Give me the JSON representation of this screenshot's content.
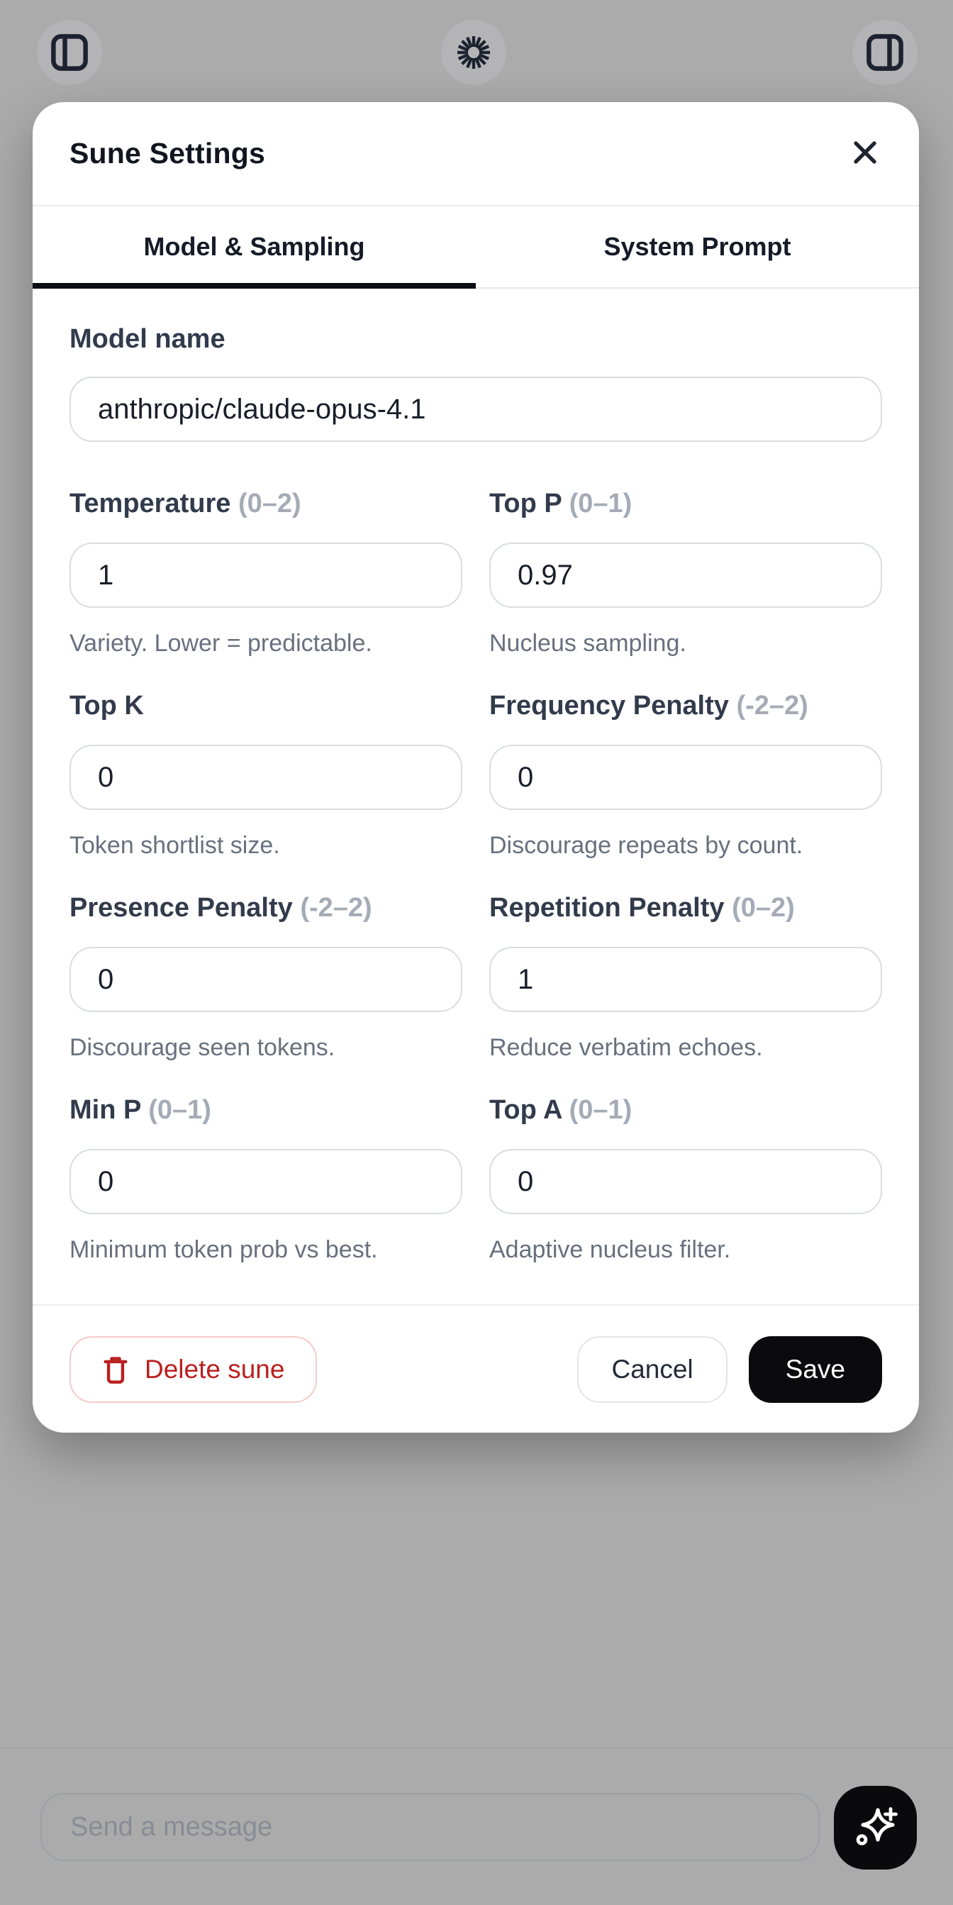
{
  "topbar": {
    "left_icon": "panel-left-icon",
    "center_icon": "starburst-spinner-icon",
    "right_icon": "panel-right-icon"
  },
  "modal": {
    "title": "Sune Settings",
    "close_icon": "close-icon",
    "tabs": [
      {
        "label": "Model & Sampling",
        "active": true
      },
      {
        "label": "System Prompt",
        "active": false
      }
    ],
    "model_field": {
      "label": "Model name",
      "value": "anthropic/claude-opus-4.1"
    },
    "fields": [
      {
        "label": "Temperature",
        "range": "(0–2)",
        "value": "1",
        "help": "Variety. Lower = predictable."
      },
      {
        "label": "Top P",
        "range": "(0–1)",
        "value": "0.97",
        "help": "Nucleus sampling."
      },
      {
        "label": "Top K",
        "range": "",
        "value": "0",
        "help": "Token shortlist size."
      },
      {
        "label": "Frequency Penalty",
        "range": "(-2–2)",
        "value": "0",
        "help": "Discourage repeats by count."
      },
      {
        "label": "Presence Penalty",
        "range": "(-2–2)",
        "value": "0",
        "help": "Discourage seen tokens."
      },
      {
        "label": "Repetition Penalty",
        "range": "(0–2)",
        "value": "1",
        "help": "Reduce verbatim echoes."
      },
      {
        "label": "Min P",
        "range": "(0–1)",
        "value": "0",
        "help": "Minimum token prob vs best."
      },
      {
        "label": "Top A",
        "range": "(0–1)",
        "value": "0",
        "help": "Adaptive nucleus filter."
      }
    ],
    "footer": {
      "delete_label": "Delete sune",
      "cancel_label": "Cancel",
      "save_label": "Save"
    }
  },
  "composer": {
    "placeholder": "Send a message",
    "send_icon": "sparkle-plus-icon"
  },
  "colors": {
    "overlay_grey": "#ababab",
    "modal_bg": "#ffffff",
    "tab_underline": "#0b0e15",
    "label_dark": "#323b4c",
    "range_grey": "#a4abb6",
    "helper_grey": "#68707e",
    "input_border": "#d9dce1",
    "delete_red": "#bb2020",
    "delete_border": "#f4caca",
    "save_black": "#0b0b0d"
  }
}
